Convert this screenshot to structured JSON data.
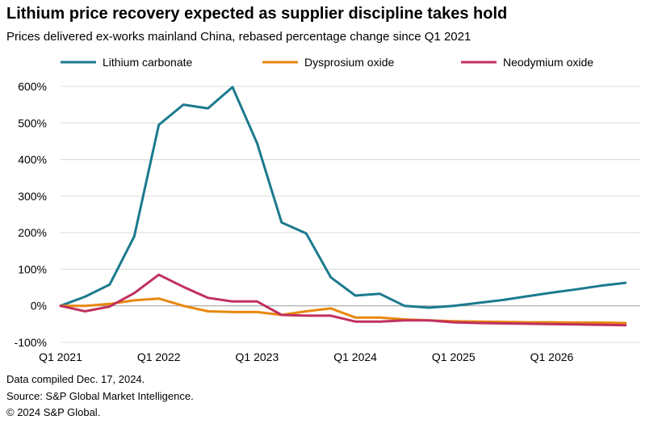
{
  "title": "Lithium price recovery expected as supplier discipline takes hold",
  "subtitle": "Prices delivered ex-works mainland China, rebased percentage change since Q1 2021",
  "footer": {
    "line1": "Data compiled Dec. 17, 2024.",
    "line2": "Source: S&P Global Market Intelligence.",
    "line3": "© 2024 S&P Global."
  },
  "chart_data": {
    "type": "line",
    "x": [
      "Q1 2021",
      "Q2 2021",
      "Q3 2021",
      "Q4 2021",
      "Q1 2022",
      "Q2 2022",
      "Q3 2022",
      "Q4 2022",
      "Q1 2023",
      "Q2 2023",
      "Q3 2023",
      "Q4 2023",
      "Q1 2024",
      "Q2 2024",
      "Q3 2024",
      "Q4 2024",
      "Q1 2025",
      "Q2 2025",
      "Q3 2025",
      "Q4 2025",
      "Q1 2026",
      "Q2 2026",
      "Q3 2026",
      "Q4 2026"
    ],
    "x_tick_labels": [
      "Q1 2021",
      "Q1 2022",
      "Q1 2023",
      "Q1 2024",
      "Q1 2025",
      "Q1 2026"
    ],
    "y_tick_labels": [
      "-100%",
      "0%",
      "100%",
      "200%",
      "300%",
      "400%",
      "500%",
      "600%"
    ],
    "ylim": [
      -100,
      600
    ],
    "y_unit": "%",
    "grid": true,
    "legend_position": "top",
    "series": [
      {
        "name": "Lithium carbonate",
        "color": "#1b7a8e",
        "values": [
          0,
          25,
          58,
          190,
          495,
          550,
          540,
          598,
          445,
          228,
          198,
          78,
          28,
          33,
          0,
          -5,
          0,
          8,
          16,
          26,
          36,
          45,
          55,
          63
        ]
      },
      {
        "name": "Dysprosium oxide",
        "color": "#e8870e",
        "values": [
          0,
          0,
          5,
          15,
          20,
          0,
          -15,
          -17,
          -17,
          -25,
          -15,
          -7,
          -32,
          -32,
          -37,
          -40,
          -42,
          -43,
          -44,
          -45,
          -45,
          -46,
          -46,
          -47
        ]
      },
      {
        "name": "Neodymium oxide",
        "color": "#c0305e",
        "values": [
          0,
          -15,
          -2,
          35,
          85,
          52,
          22,
          12,
          12,
          -25,
          -27,
          -27,
          -43,
          -43,
          -40,
          -40,
          -45,
          -47,
          -48,
          -49,
          -50,
          -51,
          -52,
          -53
        ]
      }
    ]
  }
}
